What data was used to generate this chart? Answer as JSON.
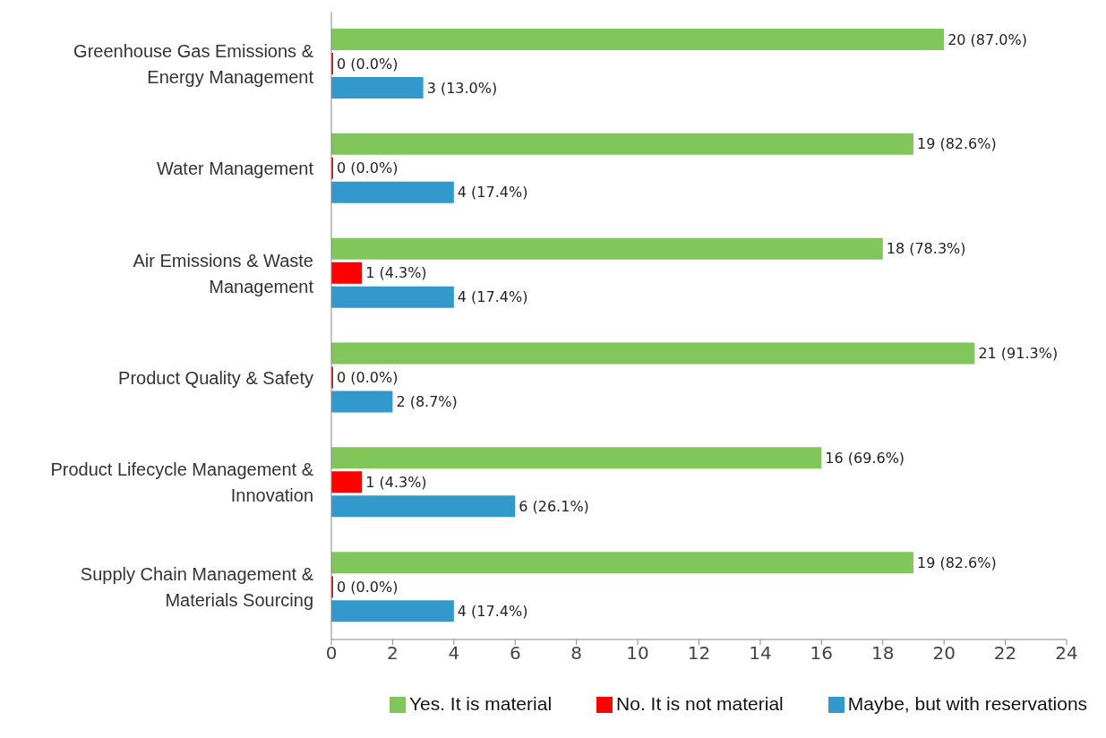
{
  "chart_data": {
    "type": "bar",
    "orientation": "horizontal",
    "categories": [
      "Greenhouse Gas Emissions & Energy Management",
      "Water Management",
      "Air Emissions & Waste Management",
      "Product Quality & Safety",
      "Product Lifecycle Management & Innovation",
      "Supply Chain Management & Materials Sourcing"
    ],
    "series": [
      {
        "name": "Yes. It is material",
        "color": "#80c65a",
        "values": [
          20,
          19,
          18,
          21,
          16,
          19
        ],
        "value_labels": [
          "20 (87.0%)",
          "19 (82.6%)",
          "18 (78.3%)",
          "21 (91.3%)",
          "16 (69.6%)",
          "19 (82.6%)"
        ]
      },
      {
        "name": "No. It is not material",
        "color": "#ff0000",
        "values": [
          0,
          0,
          1,
          0,
          1,
          0
        ],
        "value_labels": [
          "0 (0.0%)",
          "0 (0.0%)",
          "1 (4.3%)",
          "0 (0.0%)",
          "1 (4.3%)",
          "0 (0.0%)"
        ]
      },
      {
        "name": "Maybe, but with reservations",
        "color": "#3399cc",
        "values": [
          3,
          4,
          4,
          2,
          6,
          4
        ],
        "value_labels": [
          "3 (13.0%)",
          "4 (17.4%)",
          "4 (17.4%)",
          "2 (8.7%)",
          "6 (26.1%)",
          "4 (17.4%)"
        ]
      }
    ],
    "xlim": [
      0,
      24
    ],
    "xticks": [
      0,
      2,
      4,
      6,
      8,
      10,
      12,
      14,
      16,
      18,
      20,
      22,
      24
    ],
    "grid": false,
    "legend": "bottom"
  }
}
